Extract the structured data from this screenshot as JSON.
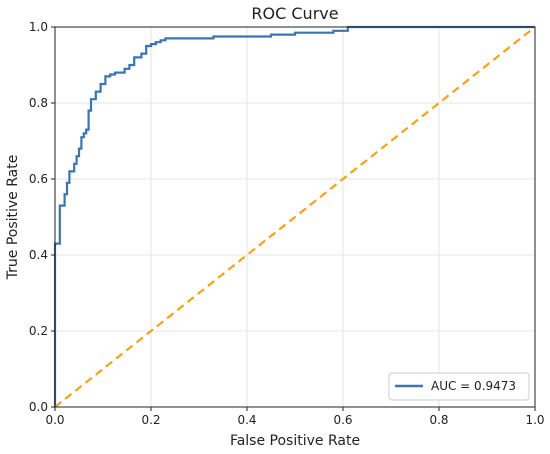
{
  "chart_data": {
    "type": "line",
    "title": "ROC Curve",
    "xlabel": "False Positive Rate",
    "ylabel": "True Positive Rate",
    "xlim": [
      0.0,
      1.0
    ],
    "ylim": [
      0.0,
      1.0
    ],
    "xticks": [
      "0.0",
      "0.2",
      "0.4",
      "0.6",
      "0.8",
      "1.0"
    ],
    "yticks": [
      "0.0",
      "0.2",
      "0.4",
      "0.6",
      "0.8",
      "1.0"
    ],
    "grid": true,
    "legend": {
      "placement": "lower-right",
      "entries": [
        "AUC = 0.9473"
      ]
    },
    "series": [
      {
        "name": "AUC = 0.9473",
        "color": "#3b75af",
        "style": "solid",
        "x": [
          0.0,
          0.0,
          0.01,
          0.01,
          0.02,
          0.02,
          0.025,
          0.025,
          0.03,
          0.03,
          0.04,
          0.04,
          0.045,
          0.045,
          0.05,
          0.05,
          0.055,
          0.055,
          0.06,
          0.06,
          0.065,
          0.065,
          0.07,
          0.07,
          0.075,
          0.075,
          0.085,
          0.085,
          0.095,
          0.095,
          0.105,
          0.105,
          0.115,
          0.115,
          0.125,
          0.125,
          0.145,
          0.145,
          0.155,
          0.155,
          0.165,
          0.165,
          0.18,
          0.18,
          0.19,
          0.19,
          0.2,
          0.2,
          0.21,
          0.21,
          0.22,
          0.22,
          0.23,
          0.23,
          0.33,
          0.33,
          0.45,
          0.45,
          0.5,
          0.5,
          0.58,
          0.58,
          0.61,
          0.61,
          1.0
        ],
        "y": [
          0.0,
          0.43,
          0.43,
          0.53,
          0.53,
          0.56,
          0.56,
          0.59,
          0.59,
          0.62,
          0.62,
          0.64,
          0.64,
          0.66,
          0.66,
          0.68,
          0.68,
          0.71,
          0.71,
          0.72,
          0.72,
          0.73,
          0.73,
          0.78,
          0.78,
          0.81,
          0.81,
          0.83,
          0.83,
          0.85,
          0.85,
          0.87,
          0.87,
          0.875,
          0.875,
          0.88,
          0.88,
          0.89,
          0.89,
          0.9,
          0.9,
          0.92,
          0.92,
          0.93,
          0.93,
          0.95,
          0.95,
          0.955,
          0.955,
          0.96,
          0.96,
          0.965,
          0.965,
          0.97,
          0.97,
          0.975,
          0.975,
          0.98,
          0.98,
          0.985,
          0.985,
          0.99,
          0.99,
          1.0,
          1.0
        ]
      },
      {
        "name": "",
        "color": "#f5a11c",
        "style": "dashed",
        "x": [
          0.0,
          1.0
        ],
        "y": [
          0.0,
          1.0
        ]
      }
    ]
  }
}
